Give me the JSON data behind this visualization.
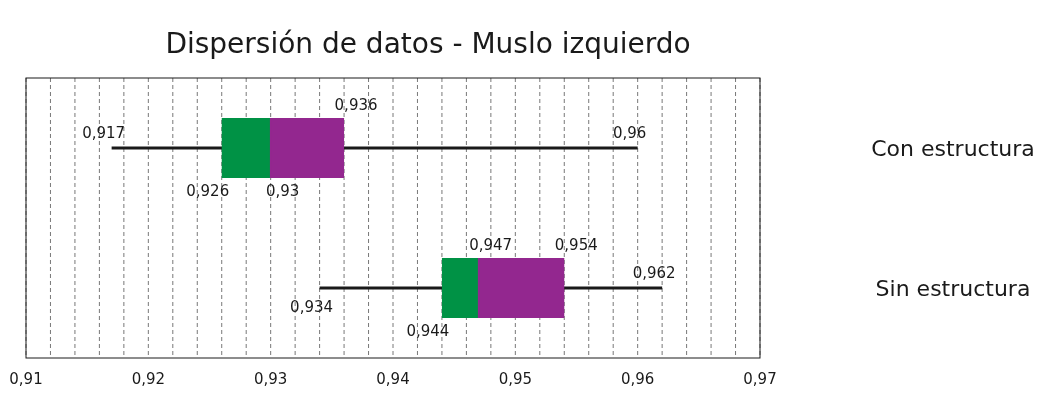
{
  "chart_data": {
    "type": "box",
    "title": "Dispersión de datos - Muslo izquierdo",
    "orientation": "horizontal",
    "categories": [
      "Con estructura",
      "Sin estructura"
    ],
    "boxes": [
      {
        "low": 0.917,
        "q1": 0.926,
        "median": 0.93,
        "q3": 0.936,
        "high": 0.96
      },
      {
        "low": 0.934,
        "q1": 0.944,
        "median": 0.947,
        "q3": 0.954,
        "high": 0.962
      }
    ],
    "colors": [
      "#009245",
      "#93278f"
    ],
    "grid": "x",
    "line_style": "dashed",
    "annotations": [
      {
        "text": "0,917",
        "x": 0.917,
        "y": "Con estructura"
      },
      {
        "text": "0,926",
        "x": 0.926,
        "y": "Con estructura"
      },
      {
        "text": "0,93",
        "x": 0.93,
        "y": "Con estructura"
      },
      {
        "text": "0,936",
        "x": 0.936,
        "y": "Con estructura"
      },
      {
        "text": "0,96",
        "x": 0.96,
        "y": "Con estructura"
      },
      {
        "text": "0,934",
        "x": 0.934,
        "y": "Sin estructura"
      },
      {
        "text": "0,944",
        "x": 0.944,
        "y": "Sin estructura"
      },
      {
        "text": "0,947",
        "x": 0.947,
        "y": "Sin estructura"
      },
      {
        "text": "0,954",
        "x": 0.954,
        "y": "Sin estructura"
      },
      {
        "text": "0,962",
        "x": 0.962,
        "y": "Sin estructura"
      }
    ],
    "xlim": [
      0.91,
      0.97
    ],
    "xticks": [
      {
        "value": 0.91,
        "label": "0,91"
      },
      {
        "value": 0.912,
        "label": null
      },
      {
        "value": 0.914,
        "label": null
      },
      {
        "value": 0.916,
        "label": null
      },
      {
        "value": 0.918,
        "label": null
      },
      {
        "value": 0.92,
        "label": "0,92"
      },
      {
        "value": 0.922,
        "label": null
      },
      {
        "value": 0.924,
        "label": null
      },
      {
        "value": 0.926,
        "label": null
      },
      {
        "value": 0.928,
        "label": null
      },
      {
        "value": 0.93,
        "label": "0,93"
      },
      {
        "value": 0.932,
        "label": null
      },
      {
        "value": 0.934,
        "label": null
      },
      {
        "value": 0.936,
        "label": null
      },
      {
        "value": 0.938,
        "label": null
      },
      {
        "value": 0.94,
        "label": "0,94"
      },
      {
        "value": 0.942,
        "label": null
      },
      {
        "value": 0.944,
        "label": null
      },
      {
        "value": 0.946,
        "label": null
      },
      {
        "value": 0.948,
        "label": null
      },
      {
        "value": 0.95,
        "label": "0,95"
      },
      {
        "value": 0.952,
        "label": null
      },
      {
        "value": 0.954,
        "label": null
      },
      {
        "value": 0.956,
        "label": null
      },
      {
        "value": 0.958,
        "label": null
      },
      {
        "value": 0.96,
        "label": "0,96"
      },
      {
        "value": 0.962,
        "label": null
      },
      {
        "value": 0.964,
        "label": null
      },
      {
        "value": 0.966,
        "label": null
      },
      {
        "value": 0.968,
        "label": null
      },
      {
        "value": 0.97,
        "label": "0,97"
      }
    ]
  }
}
